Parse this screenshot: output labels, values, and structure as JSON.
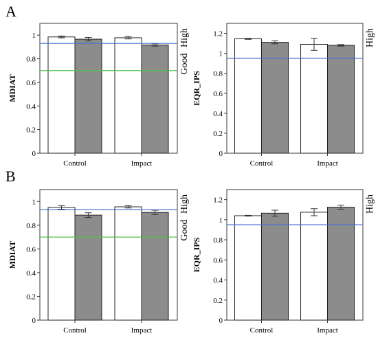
{
  "panel_labels": [
    "A",
    "B"
  ],
  "colors": {
    "bar_open": "#ffffff",
    "bar_filled": "#8c8c8c",
    "blue_line": "#4a6fd4",
    "green_line": "#50c050",
    "frame": "#3a3a3a"
  },
  "chart_data": [
    {
      "type": "bar",
      "panel": "A",
      "ylabel": "MDIAT",
      "categories": [
        "Control",
        "Impact"
      ],
      "ylim": [
        0,
        1.1
      ],
      "yticks": [
        0.0,
        0.2,
        0.4,
        0.6,
        0.8,
        1.0
      ],
      "series": [
        {
          "values": [
            0.985,
            0.978
          ],
          "errors": [
            0.008,
            0.01
          ],
          "color": "#ffffff"
        },
        {
          "values": [
            0.966,
            0.917
          ],
          "errors": [
            0.015,
            0.01
          ],
          "color": "#8c8c8c"
        }
      ],
      "reference_lines": [
        {
          "y": 0.93,
          "color": "#4a6fd4"
        },
        {
          "y": 0.7,
          "color": "#50c050"
        }
      ],
      "side_labels": [
        "Good",
        "High"
      ]
    },
    {
      "type": "bar",
      "panel": "A",
      "ylabel": "EQR_IPS",
      "categories": [
        "Control",
        "Impact"
      ],
      "ylim": [
        0,
        1.3
      ],
      "yticks": [
        0.0,
        0.2,
        0.4,
        0.6,
        0.8,
        1.0,
        1.2
      ],
      "series": [
        {
          "values": [
            1.145,
            1.09
          ],
          "errors": [
            0.005,
            0.06
          ],
          "color": "#ffffff"
        },
        {
          "values": [
            1.11,
            1.08
          ],
          "errors": [
            0.015,
            0.008
          ],
          "color": "#8c8c8c"
        }
      ],
      "reference_lines": [
        {
          "y": 0.95,
          "color": "#4a6fd4"
        }
      ],
      "side_labels": [
        "High"
      ]
    },
    {
      "type": "bar",
      "panel": "B",
      "ylabel": "MDIAT",
      "categories": [
        "Control",
        "Impact"
      ],
      "ylim": [
        0,
        1.1
      ],
      "yticks": [
        0.0,
        0.2,
        0.4,
        0.6,
        0.8,
        1.0
      ],
      "series": [
        {
          "values": [
            0.95,
            0.955
          ],
          "errors": [
            0.015,
            0.01
          ],
          "color": "#ffffff"
        },
        {
          "values": [
            0.885,
            0.908
          ],
          "errors": [
            0.02,
            0.018
          ],
          "color": "#8c8c8c"
        }
      ],
      "reference_lines": [
        {
          "y": 0.93,
          "color": "#4a6fd4"
        },
        {
          "y": 0.7,
          "color": "#50c050"
        }
      ],
      "side_labels": [
        "Good",
        "High"
      ]
    },
    {
      "type": "bar",
      "panel": "B",
      "ylabel": "EQR_IPS",
      "categories": [
        "Control",
        "Impact"
      ],
      "ylim": [
        0,
        1.3
      ],
      "yticks": [
        0.0,
        0.2,
        0.4,
        0.6,
        0.8,
        1.0,
        1.2
      ],
      "series": [
        {
          "values": [
            1.04,
            1.075
          ],
          "errors": [
            0.004,
            0.035
          ],
          "color": "#ffffff"
        },
        {
          "values": [
            1.065,
            1.125
          ],
          "errors": [
            0.03,
            0.02
          ],
          "color": "#8c8c8c"
        }
      ],
      "reference_lines": [
        {
          "y": 0.95,
          "color": "#4a6fd4"
        }
      ],
      "side_labels": [
        "High"
      ]
    }
  ]
}
